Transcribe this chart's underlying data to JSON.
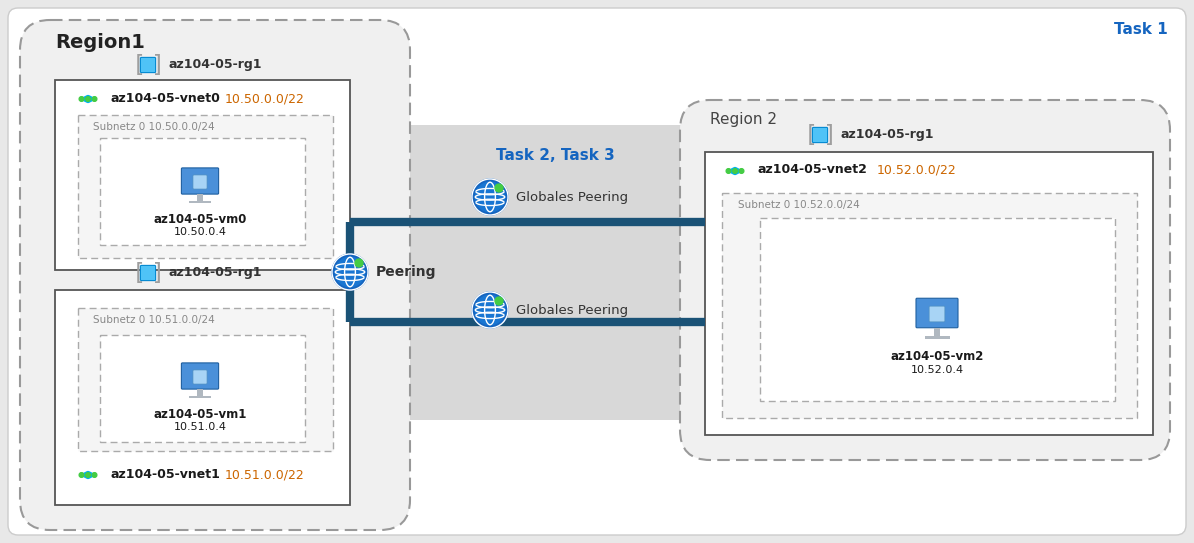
{
  "bg_color": "#e8e8e8",
  "white": "#ffffff",
  "panel_bg": "#f2f2f2",
  "task_zone_bg": "#d4d4d4",
  "text_dark": "#1a1a1a",
  "text_blue": "#1565c0",
  "text_gray": "#777777",
  "text_orange": "#cc6600",
  "blue_line": "#1a5276",
  "azure_blue": "#0078d4",
  "vnet_teal": "#00b0f0",
  "globe_blue": "#1565c0",
  "rg_gray": "#9e9e9e",
  "title": "Task 1",
  "region1_label": "Region1",
  "region2_label": "Region 2",
  "task_label": "Task 2, Task 3",
  "peering_label": "Peering",
  "globales_peering": "Globales Peering",
  "rg1_top_label": "az104-05-rg1",
  "rg1_bot_label": "az104-05-rg1",
  "rg2_label": "az104-05-rg1",
  "vnet0_label": "az104-05-vnet0",
  "vnet0_cidr": "10.50.0.0/22",
  "vnet1_label": "az104-05-vnet1",
  "vnet1_cidr": "10.51.0.0/22",
  "vnet2_label": "az104-05-vnet2",
  "vnet2_cidr": "10.52.0.0/22",
  "subnet0_label": "Subnetz 0 10.50.0.0/24",
  "subnet1_label": "Subnetz 0 10.51.0.0/24",
  "subnet2_label": "Subnetz 0 10.52.0.0/24",
  "vm0_label": "az104-05-vm0",
  "vm0_ip": "10.50.0.4",
  "vm1_label": "az104-05-vm1",
  "vm1_ip": "10.51.0.4",
  "vm2_label": "az104-05-vm2",
  "vm2_ip": "10.52.0.4"
}
